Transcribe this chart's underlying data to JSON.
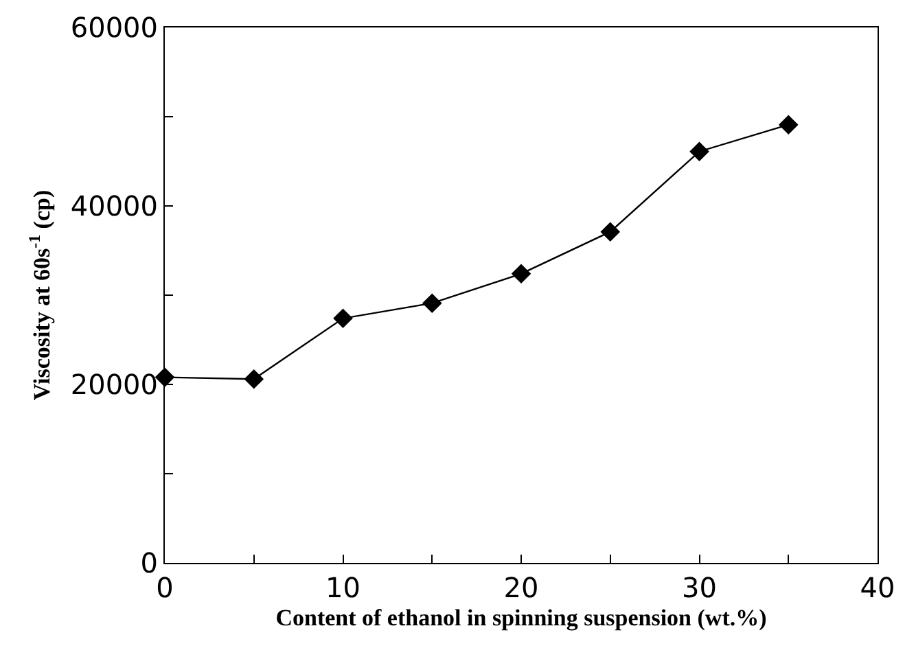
{
  "chart_data": {
    "type": "line",
    "xlabel": "Content of ethanol in spinning suspension (wt.%)",
    "ylabel": "Viscosity at 60s$^{-1}$ (cp)",
    "x": [
      0,
      5,
      10,
      15,
      20,
      25,
      30,
      35
    ],
    "series": [
      {
        "color": "#000000",
        "values": [
          20800,
          20600,
          27400,
          29100,
          32400,
          37100,
          46100,
          49100
        ]
      }
    ],
    "xlim": [
      0,
      40
    ],
    "xticks": [
      0,
      {
        "value": 5,
        "label": null
      },
      10,
      {
        "value": 15,
        "label": null
      },
      20,
      {
        "value": 25,
        "label": null
      },
      30,
      {
        "value": 35,
        "label": null
      },
      40
    ],
    "ylim": [
      0,
      60000
    ],
    "yticks": [
      0,
      {
        "value": 10000,
        "label": null
      },
      20000,
      {
        "value": 30000,
        "label": null
      },
      40000,
      {
        "value": 50000,
        "label": null
      },
      60000
    ],
    "marker": "diamond",
    "line_style": "solid",
    "grid": false,
    "legend": false
  }
}
